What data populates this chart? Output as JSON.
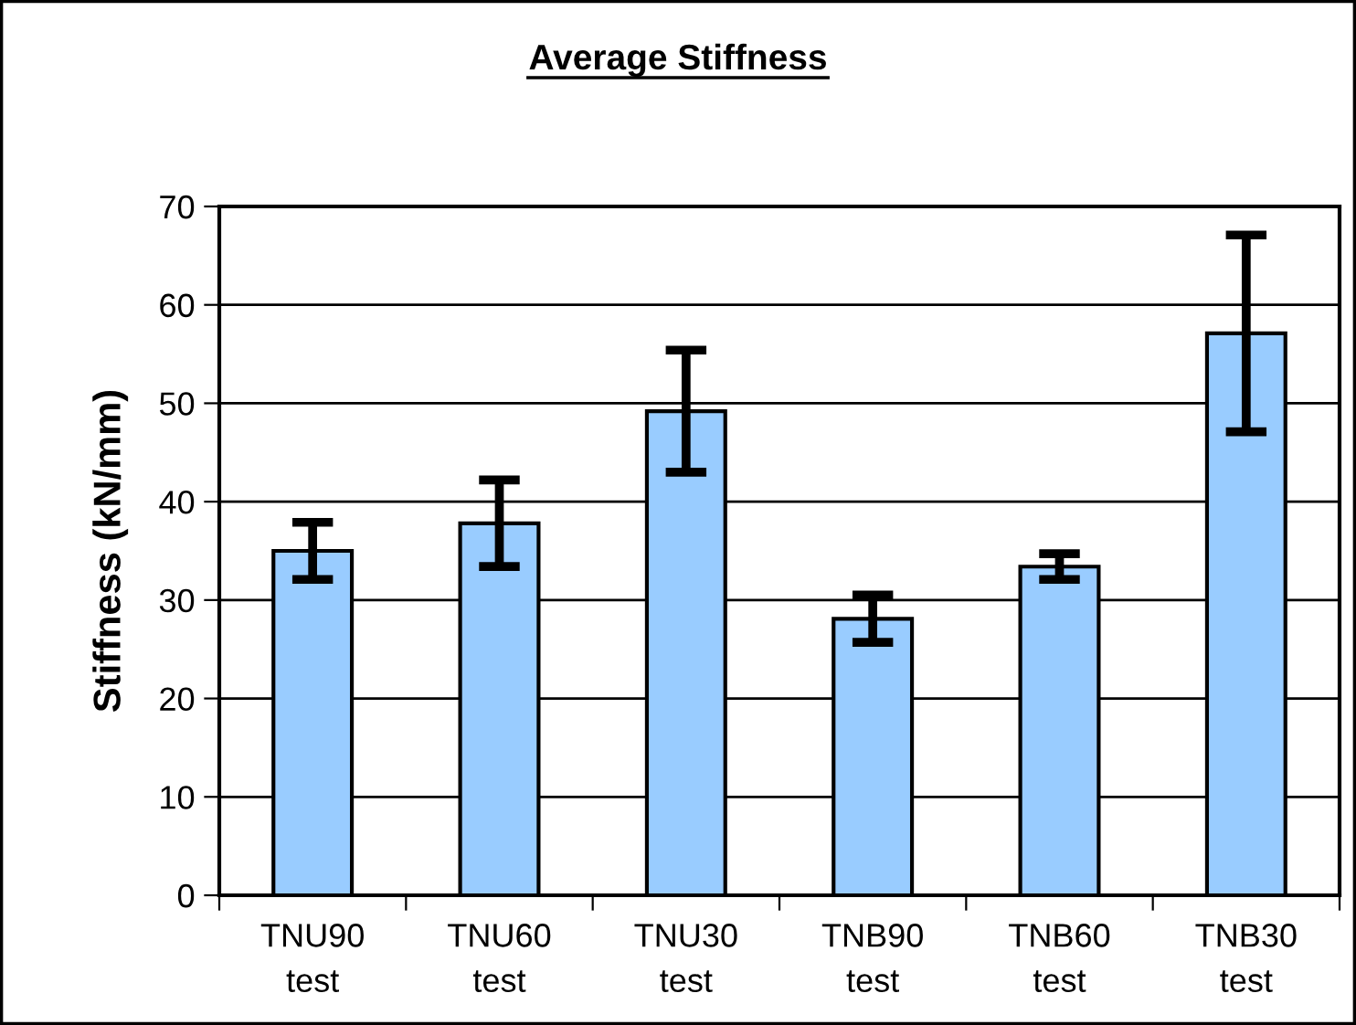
{
  "chart_data": {
    "type": "bar",
    "title": "Average Stiffness",
    "ylabel": "Stiffness (kN/mm)",
    "categories": [
      "TNU90\ntest",
      "TNU60\ntest",
      "TNU30\ntest",
      "TNB90\ntest",
      "TNB60\ntest",
      "TNB30\ntest"
    ],
    "values": [
      35.0,
      37.8,
      49.2,
      28.1,
      33.4,
      57.1
    ],
    "errors": [
      2.9,
      4.4,
      6.2,
      2.4,
      1.3,
      10.0
    ],
    "color": "#99ccff",
    "ylim": [
      0,
      70
    ],
    "yticks": [
      0,
      10,
      20,
      30,
      40,
      50,
      60,
      70
    ],
    "grid": "y"
  }
}
